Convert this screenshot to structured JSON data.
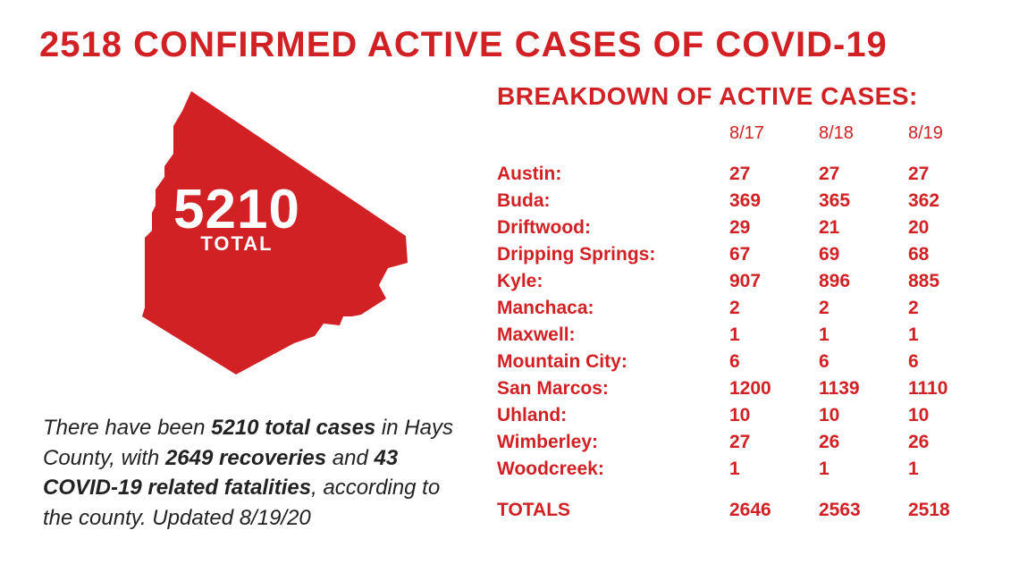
{
  "accent_color": "#d22124",
  "text_color": "#222222",
  "background_color": "#ffffff",
  "headline": "2518 CONFIRMED ACTIVE CASES OF COVID-19",
  "map": {
    "total_number": "5210",
    "total_label": "TOTAL",
    "fill_color": "#d22124"
  },
  "summary": {
    "prefix": "There have been ",
    "bold1": "5210 total cases",
    "mid1": " in Hays County, with ",
    "bold2": "2649 recoveries",
    "mid2": " and ",
    "bold3": "43 COVID-19 related fatalities",
    "suffix": ", according to the county. Updated 8/19/20"
  },
  "breakdown": {
    "title": "BREAKDOWN OF ACTIVE CASES:",
    "date_columns": [
      "8/17",
      "8/18",
      "8/19"
    ],
    "rows": [
      {
        "city": "Austin:",
        "vals": [
          "27",
          "27",
          "27"
        ]
      },
      {
        "city": "Buda:",
        "vals": [
          "369",
          "365",
          "362"
        ]
      },
      {
        "city": "Driftwood:",
        "vals": [
          "29",
          "21",
          "20"
        ]
      },
      {
        "city": "Dripping Springs:",
        "vals": [
          "67",
          "69",
          "68"
        ]
      },
      {
        "city": "Kyle:",
        "vals": [
          "907",
          "896",
          "885"
        ]
      },
      {
        "city": "Manchaca:",
        "vals": [
          "2",
          "2",
          "2"
        ]
      },
      {
        "city": "Maxwell:",
        "vals": [
          "1",
          "1",
          "1"
        ]
      },
      {
        "city": "Mountain City:",
        "vals": [
          "6",
          "6",
          "6"
        ]
      },
      {
        "city": "San Marcos:",
        "vals": [
          "1200",
          "1139",
          "1110"
        ]
      },
      {
        "city": "Uhland:",
        "vals": [
          "10",
          "10",
          "10"
        ]
      },
      {
        "city": "Wimberley:",
        "vals": [
          "27",
          "26",
          "26"
        ]
      },
      {
        "city": "Woodcreek:",
        "vals": [
          "1",
          "1",
          "1"
        ]
      }
    ],
    "totals": {
      "label": "TOTALS",
      "vals": [
        "2646",
        "2563",
        "2518"
      ]
    }
  }
}
